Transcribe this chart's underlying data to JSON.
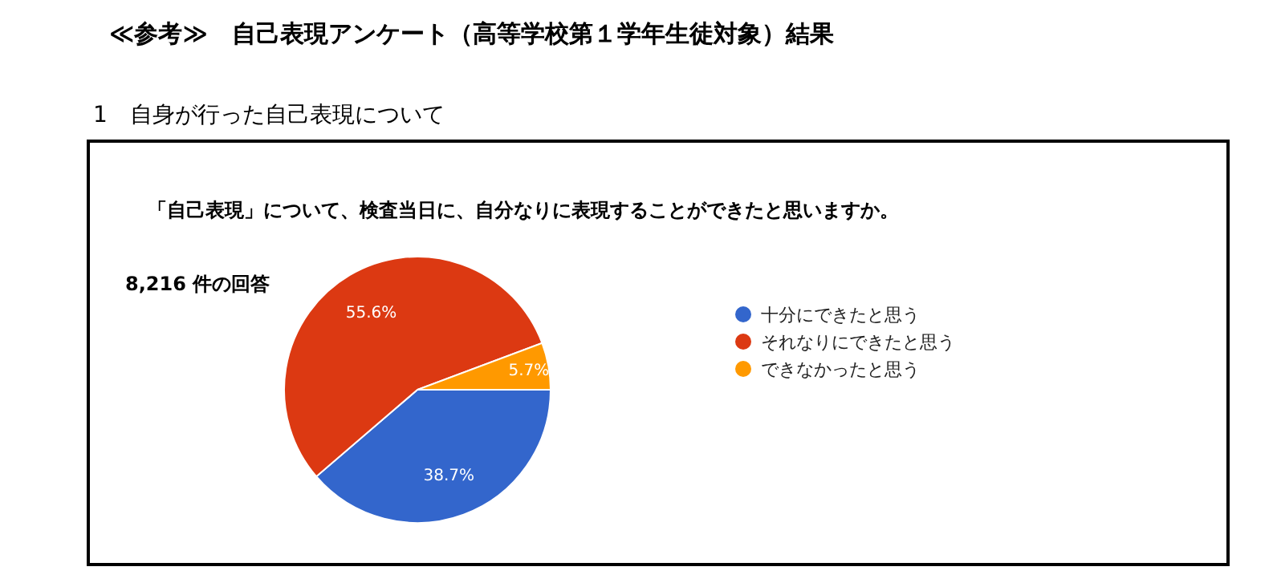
{
  "chart_data": {
    "type": "pie",
    "title": "≪参考≫　自己表現アンケート（高等学校第１学年生徒対象）結果",
    "subtitle": "1　自身が行った自己表現について",
    "annotations": [
      "「自己表現」について、検査当日に、自分なりに表現することができたと思いますか。",
      "8,216 件の回答"
    ],
    "categories": [
      "十分にできたと思う",
      "それなりにできたと思う",
      "できなかったと思う"
    ],
    "values": [
      38.7,
      55.6,
      5.7
    ],
    "colors": [
      "#3366cc",
      "#dc3912",
      "#ff9900"
    ],
    "value_labels": [
      "38.7%",
      "55.6%",
      "5.7%"
    ],
    "legend": "right"
  }
}
